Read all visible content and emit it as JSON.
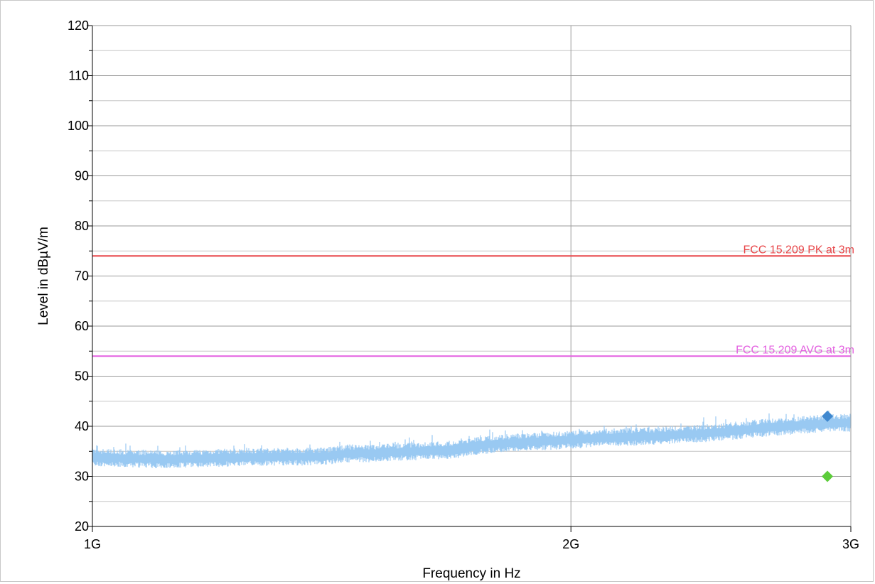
{
  "chart_data": {
    "type": "line",
    "xlabel": "Frequency in Hz",
    "ylabel": "Level in dBµV/m",
    "x_scale": "log",
    "xlim": [
      1000000000,
      3000000000
    ],
    "ylim": [
      20,
      120
    ],
    "grid": true,
    "x_ticks": [
      {
        "value": 1000000000,
        "label": "1G"
      },
      {
        "value": 2000000000,
        "label": "2G"
      },
      {
        "value": 3000000000,
        "label": "3G"
      }
    ],
    "y_ticks": [
      20,
      30,
      40,
      50,
      60,
      70,
      80,
      90,
      100,
      110,
      120
    ],
    "y_tick_labels": [
      "20",
      "30",
      "40",
      "50",
      "60",
      "70",
      "80",
      "90",
      "100",
      "110",
      "120"
    ],
    "limit_lines": [
      {
        "label": "FCC 15.209 PK at 3m",
        "value": 74,
        "color": "#e8474a"
      },
      {
        "label": "FCC 15.209 AVG at 3m",
        "value": 54,
        "color": "#e35fe0"
      }
    ],
    "trace": {
      "color": "#99c9f2",
      "band": 1.8,
      "points": [
        [
          1000000000,
          33.8
        ],
        [
          1100000000,
          33.4
        ],
        [
          1200000000,
          33.7
        ],
        [
          1300000000,
          33.9
        ],
        [
          1400000000,
          34.0
        ],
        [
          1450000000,
          34.6
        ],
        [
          1500000000,
          34.6
        ],
        [
          1600000000,
          35.0
        ],
        [
          1700000000,
          35.4
        ],
        [
          1750000000,
          36.2
        ],
        [
          1850000000,
          36.8
        ],
        [
          1950000000,
          37.1
        ],
        [
          2000000000,
          37.3
        ],
        [
          2100000000,
          37.7
        ],
        [
          2200000000,
          37.9
        ],
        [
          2300000000,
          38.2
        ],
        [
          2400000000,
          38.5
        ],
        [
          2500000000,
          38.9
        ],
        [
          2600000000,
          39.5
        ],
        [
          2700000000,
          39.9
        ],
        [
          2800000000,
          40.3
        ],
        [
          2900000000,
          40.6
        ],
        [
          3000000000,
          40.7
        ]
      ]
    },
    "markers": [
      {
        "x": 2900000000,
        "y": 42,
        "color": "#3f88cf"
      },
      {
        "x": 2900000000,
        "y": 30,
        "color": "#5ccc3a"
      }
    ]
  }
}
